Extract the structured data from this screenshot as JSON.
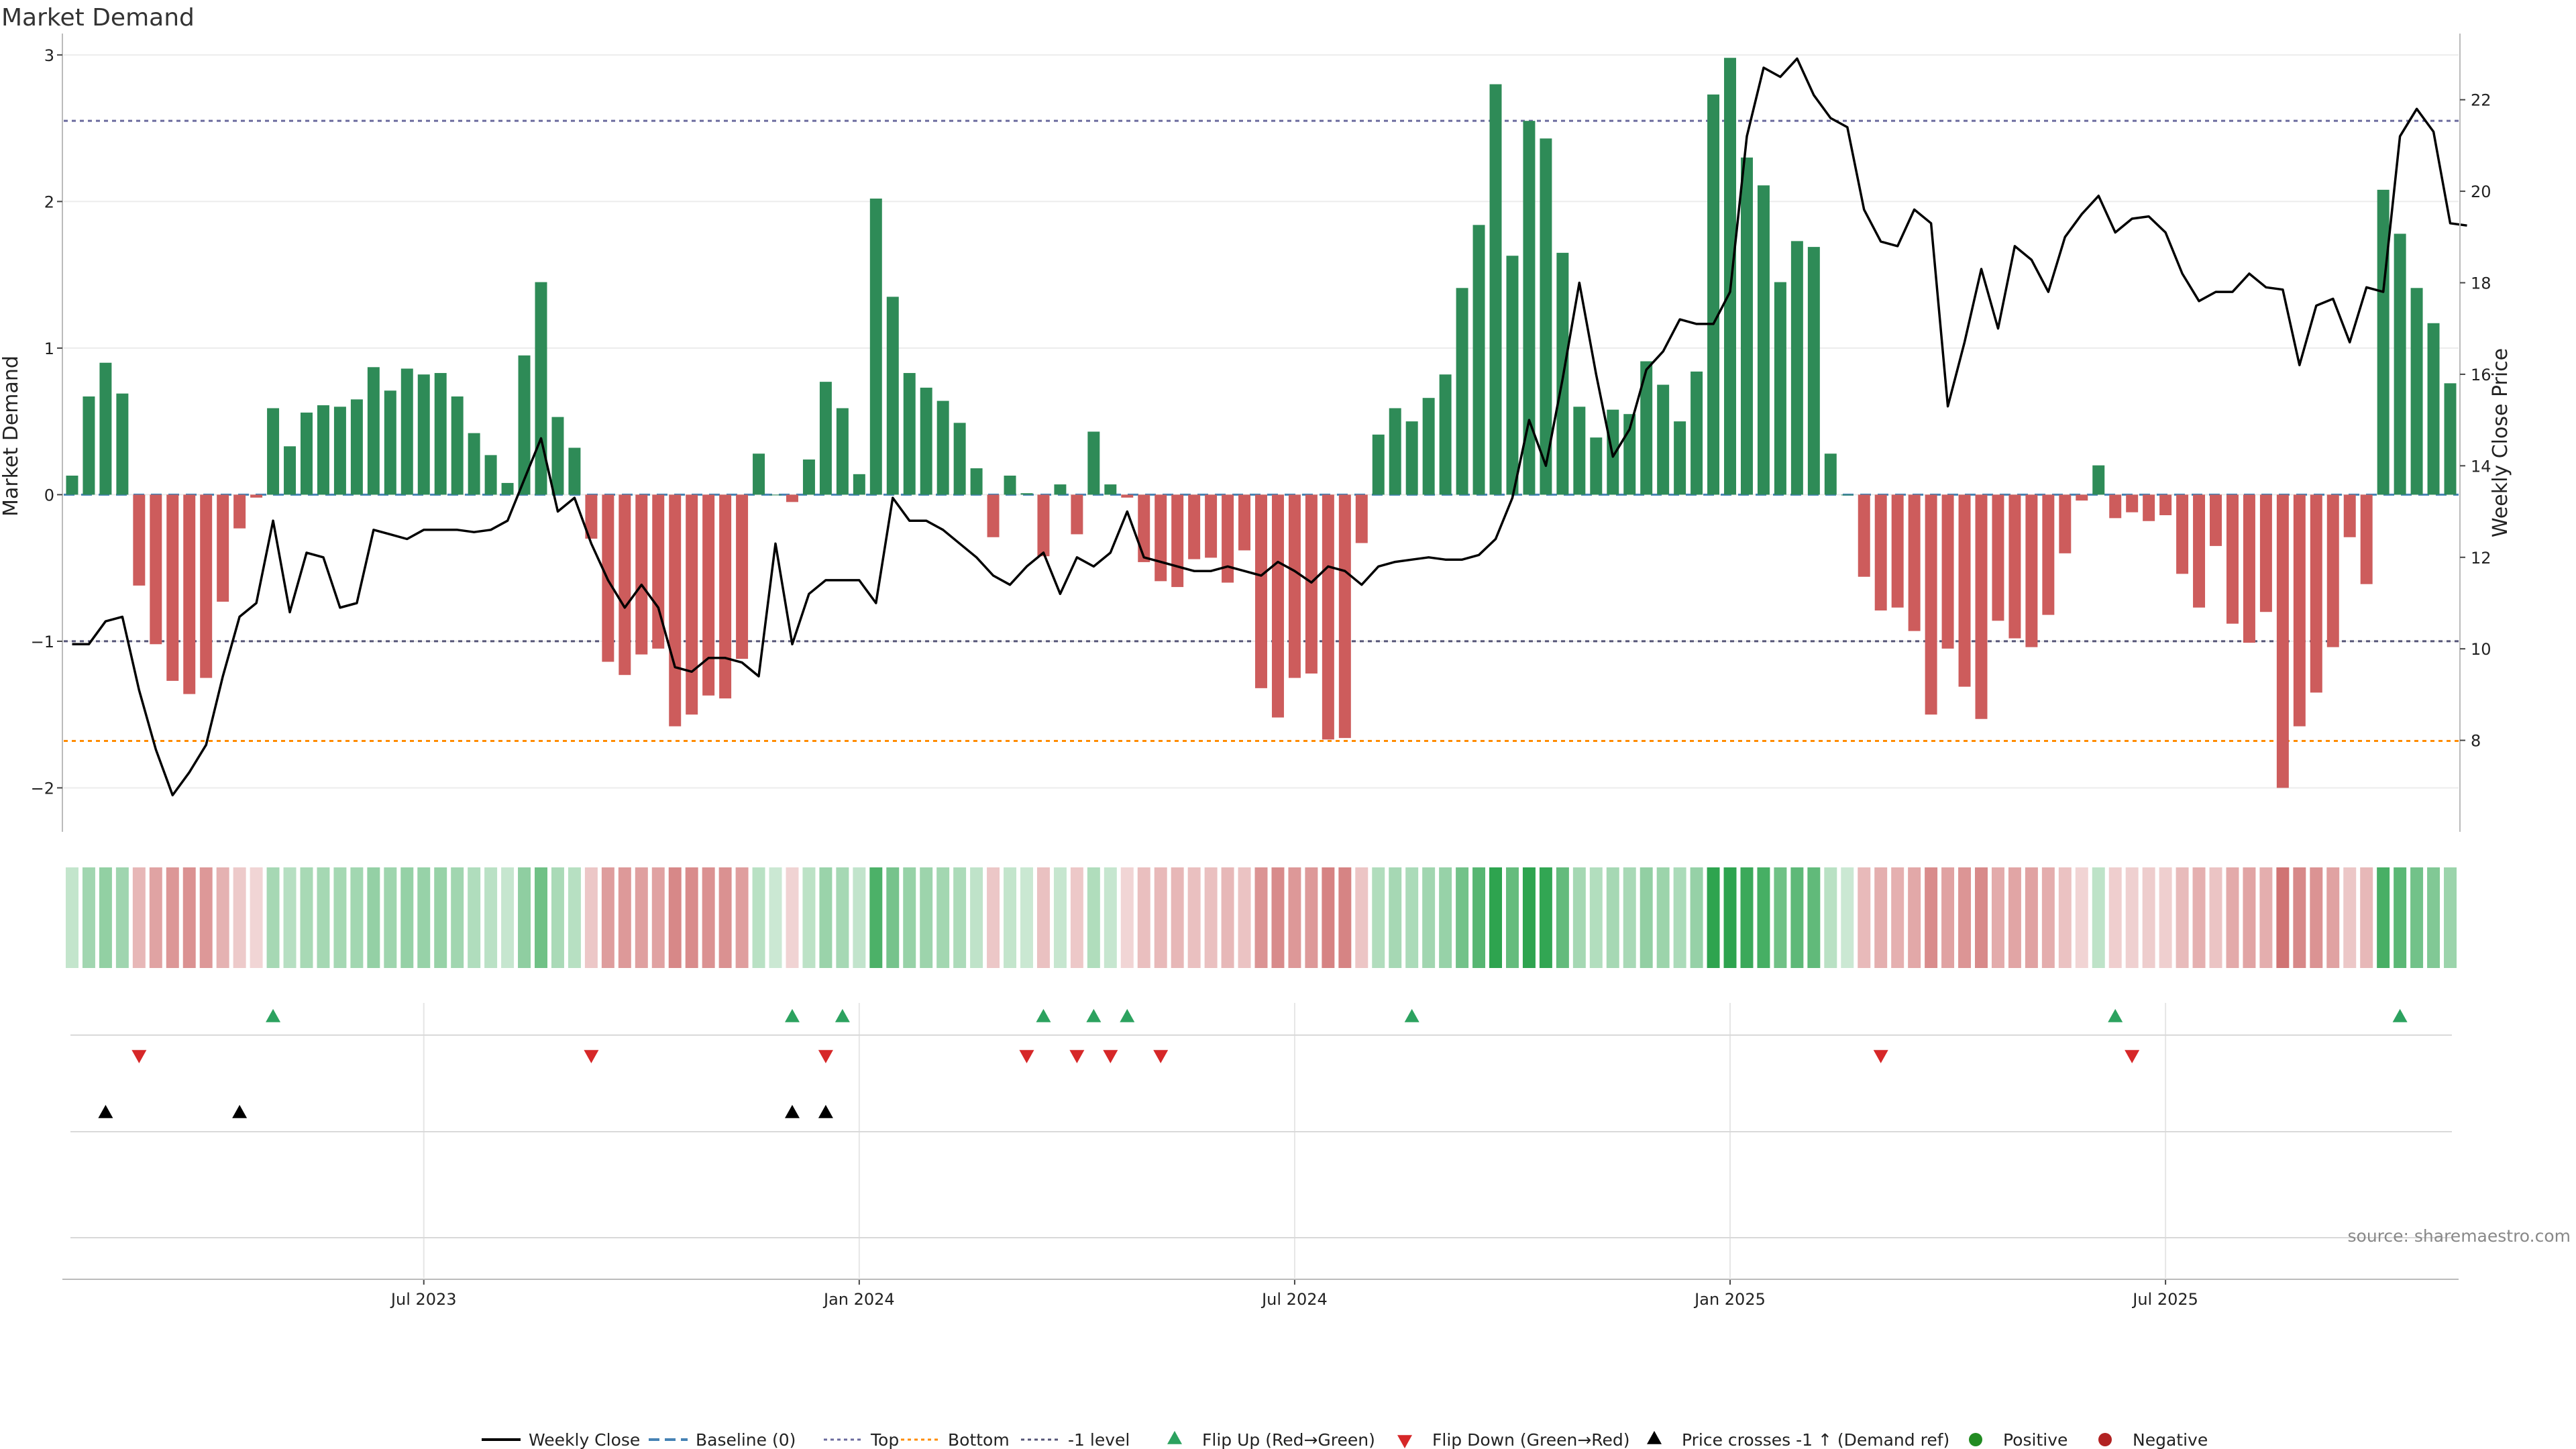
{
  "title": "Market Demand",
  "source": "source: sharemaestro.com",
  "colors": {
    "positive": "#2e8b57",
    "negative": "#cd5c5c",
    "price": "#000000",
    "baseline": "#4682b4",
    "top": "#6b6b9e",
    "bottom": "#ff8c00",
    "minus1": "#555577",
    "flip_up": "#2ca25f",
    "flip_down": "#d62728",
    "cross": "#000000",
    "pos_dot": "#228b22",
    "neg_dot": "#b22222"
  },
  "chart_data": {
    "type": "bar+line",
    "title": "Market Demand",
    "ylabel_left": "Market Demand",
    "ylabel_right": "Weekly Close Price",
    "ylim_left": [
      -2.3,
      3.1
    ],
    "ylim_right": [
      6.0,
      23.3
    ],
    "left_ticks": [
      -2,
      -1,
      0,
      1,
      2,
      3
    ],
    "left_tick_labels": [
      "−2",
      "−1",
      "0",
      "1",
      "2",
      "3"
    ],
    "right_ticks": [
      8,
      10,
      12,
      14,
      16,
      18,
      20,
      22
    ],
    "right_tick_labels": [
      "8",
      "10",
      "12",
      "14",
      "16",
      "18",
      "20",
      "22"
    ],
    "x_tick_labels": [
      "Jul 2023",
      "Jan 2024",
      "Jul 2024",
      "Jan 2025",
      "Jul 2025"
    ],
    "x_tick_weeks": [
      21,
      47,
      73,
      99,
      125
    ],
    "reference_lines": {
      "baseline": 0,
      "top": 2.55,
      "bottom": -1.68,
      "minus1": -1.0
    },
    "demand": [
      0.13,
      0.67,
      0.9,
      0.69,
      -0.62,
      -1.02,
      -1.27,
      -1.36,
      -1.25,
      -0.73,
      -0.23,
      -0.02,
      0.59,
      0.33,
      0.56,
      0.61,
      0.6,
      0.65,
      0.87,
      0.71,
      0.86,
      0.82,
      0.83,
      0.67,
      0.42,
      0.27,
      0.08,
      0.95,
      1.45,
      0.53,
      0.32,
      -0.3,
      -1.14,
      -1.23,
      -1.09,
      -1.05,
      -1.58,
      -1.5,
      -1.37,
      -1.39,
      -1.12,
      0.28,
      0.0,
      -0.05,
      0.24,
      0.77,
      0.59,
      0.14,
      2.02,
      1.35,
      0.83,
      0.73,
      0.64,
      0.49,
      0.18,
      -0.29,
      0.13,
      0.01,
      -0.42,
      0.07,
      -0.27,
      0.43,
      0.07,
      -0.02,
      -0.46,
      -0.59,
      -0.63,
      -0.44,
      -0.43,
      -0.6,
      -0.38,
      -1.32,
      -1.52,
      -1.25,
      -1.22,
      -1.67,
      -1.66,
      -0.33,
      0.41,
      0.59,
      0.5,
      0.66,
      0.82,
      1.41,
      1.84,
      2.8,
      1.63,
      2.55,
      2.43,
      1.65,
      0.6,
      0.39,
      0.58,
      0.55,
      0.91,
      0.75,
      0.5,
      0.84,
      2.73,
      2.98,
      2.3,
      2.11,
      1.45,
      1.73,
      1.69,
      0.28,
      0.0,
      -0.56,
      -0.79,
      -0.77,
      -0.93,
      -1.5,
      -1.05,
      -1.31,
      -1.53,
      -0.86,
      -0.98,
      -1.04,
      -0.82,
      -0.4,
      -0.04,
      0.2,
      -0.16,
      -0.12,
      -0.18,
      -0.14,
      -0.54,
      -0.77,
      -0.35,
      -0.88,
      -1.01,
      -0.8,
      -2.0,
      -1.58,
      -1.35,
      -1.04,
      -0.29,
      -0.61,
      2.08,
      1.78,
      1.41,
      1.17,
      0.76
    ],
    "weekly_close": [
      10.1,
      10.1,
      10.6,
      10.7,
      9.1,
      7.8,
      6.8,
      7.3,
      7.9,
      9.4,
      10.7,
      11.0,
      12.8,
      10.8,
      12.1,
      12.0,
      10.9,
      11.0,
      12.6,
      12.5,
      12.4,
      12.6,
      12.6,
      12.6,
      12.55,
      12.6,
      12.8,
      13.7,
      14.6,
      13.0,
      13.3,
      12.3,
      11.5,
      10.9,
      11.4,
      10.9,
      9.6,
      9.5,
      9.8,
      9.8,
      9.7,
      9.4,
      12.3,
      10.1,
      11.2,
      11.5,
      11.5,
      11.5,
      11.0,
      13.3,
      12.8,
      12.8,
      12.6,
      12.3,
      12.0,
      11.6,
      11.4,
      11.8,
      12.1,
      11.2,
      12.0,
      11.8,
      12.1,
      13.0,
      12.0,
      11.9,
      11.8,
      11.7,
      11.7,
      11.8,
      11.7,
      11.6,
      11.9,
      11.7,
      11.45,
      11.8,
      11.7,
      11.4,
      11.8,
      11.9,
      11.95,
      12.0,
      11.95,
      11.95,
      12.05,
      12.4,
      13.3,
      15.0,
      14.0,
      15.9,
      18.0,
      16.0,
      14.2,
      14.8,
      16.1,
      16.5,
      17.2,
      17.1,
      17.1,
      17.8,
      21.2,
      22.7,
      22.5,
      22.9,
      22.1,
      21.6,
      21.4,
      19.6,
      18.9,
      18.8,
      19.6,
      19.3,
      15.3,
      16.7,
      18.3,
      17.0,
      18.8,
      18.5,
      17.8,
      19.0,
      19.5,
      19.9,
      19.1,
      19.4,
      19.45,
      19.1,
      18.2,
      17.6,
      17.8,
      17.8,
      18.2,
      17.9,
      17.85,
      16.2,
      17.5,
      17.65,
      16.7,
      17.9,
      17.8,
      21.2,
      21.8,
      21.3,
      19.3,
      19.25
    ],
    "flip_up_weeks": [
      12,
      43,
      46,
      58,
      61,
      63,
      80,
      122,
      139
    ],
    "flip_down_weeks": [
      4,
      31,
      45,
      57,
      60,
      62,
      65,
      108,
      123
    ],
    "price_cross_weeks": [
      2,
      10,
      43,
      45
    ]
  },
  "legend": [
    {
      "label": "Weekly Close",
      "kind": "line",
      "color": "#000000"
    },
    {
      "label": "Baseline (0)",
      "kind": "dash",
      "color": "#4682b4"
    },
    {
      "label": "Top",
      "kind": "dot",
      "color": "#6b6b9e"
    },
    {
      "label": "Bottom",
      "kind": "dot",
      "color": "#ff8c00"
    },
    {
      "label": "-1 level",
      "kind": "dot",
      "color": "#555577"
    },
    {
      "label": "Flip Up (Red→Green)",
      "kind": "tri-up",
      "color": "#2ca25f"
    },
    {
      "label": "Flip Down (Green→Red)",
      "kind": "tri-down",
      "color": "#d62728"
    },
    {
      "label": "Price crosses -1 ↑ (Demand ref)",
      "kind": "tri-up",
      "color": "#000000"
    },
    {
      "label": "Positive",
      "kind": "circle",
      "color": "#228b22"
    },
    {
      "label": "Negative",
      "kind": "circle",
      "color": "#b22222"
    }
  ]
}
